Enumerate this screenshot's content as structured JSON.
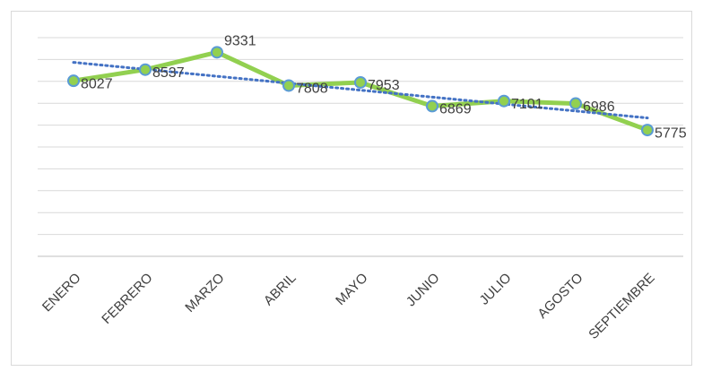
{
  "chart_data": {
    "type": "line",
    "categories": [
      "ENERO",
      "FEBRERO",
      "MARZO",
      "ABRIL",
      "MAYO",
      "JUNIO",
      "JULIO",
      "AGOSTO",
      "SEPTIEMBRE"
    ],
    "values": [
      8027,
      8537,
      9331,
      7808,
      7953,
      6869,
      7101,
      6986,
      5775
    ],
    "color": "#92d050",
    "marker_edge_color": "#5b9bd5",
    "trendline": "linear",
    "trendline_color": "#4472c4",
    "ylim": [
      0,
      10000
    ],
    "yticks": [
      0,
      1000,
      2000,
      3000,
      4000,
      5000,
      6000,
      7000,
      8000,
      9000,
      10000
    ],
    "grid": true
  }
}
